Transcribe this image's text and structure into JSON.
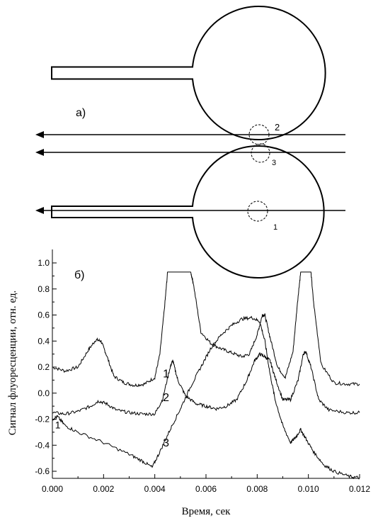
{
  "diagram": {
    "panel_label": "а)",
    "circle_labels": [
      "2",
      "3",
      "1"
    ]
  },
  "chart_data": {
    "type": "line",
    "panel_label": "б)",
    "title": "",
    "xlabel": "Время, сек",
    "ylabel": "Сигнал флуоресценции, отн. ед.",
    "xlim": [
      0,
      0.012
    ],
    "ylim": [
      -0.65,
      1.1
    ],
    "xticks": [
      "0.000",
      "0.002",
      "0.004",
      "0.006",
      "0.008",
      "0.010",
      "0.012"
    ],
    "yticks": [
      "1.0",
      "0.8",
      "0.6",
      "0.4",
      "0.2",
      "0.0",
      "-0.2",
      "-0.4",
      "-0.6"
    ],
    "grid": false,
    "series": [
      {
        "name": "1",
        "x": [
          0,
          0.0005,
          0.001,
          0.0014,
          0.0017,
          0.0019,
          0.0021,
          0.0024,
          0.0028,
          0.0032,
          0.0036,
          0.004,
          0.0042,
          0.0044,
          0.0045,
          0.0054,
          0.0055,
          0.0058,
          0.0062,
          0.0066,
          0.007,
          0.0074,
          0.0077,
          0.008,
          0.0082,
          0.0083,
          0.0085,
          0.0088,
          0.0091,
          0.0094,
          0.0096,
          0.0097,
          0.0101,
          0.0102,
          0.0105,
          0.011,
          0.0115,
          0.012
        ],
        "y": [
          0.2,
          0.17,
          0.2,
          0.33,
          0.41,
          0.4,
          0.3,
          0.13,
          0.08,
          0.06,
          0.07,
          0.12,
          0.3,
          0.7,
          0.93,
          0.93,
          0.85,
          0.47,
          0.38,
          0.34,
          0.31,
          0.28,
          0.3,
          0.45,
          0.6,
          0.6,
          0.43,
          0.2,
          0.12,
          0.32,
          0.75,
          0.93,
          0.93,
          0.7,
          0.22,
          0.08,
          0.07,
          0.07
        ]
      },
      {
        "name": "2",
        "x": [
          0,
          0.0005,
          0.001,
          0.0015,
          0.0018,
          0.0021,
          0.0025,
          0.003,
          0.0035,
          0.004,
          0.0043,
          0.0046,
          0.0047,
          0.0049,
          0.0052,
          0.0056,
          0.006,
          0.0064,
          0.0068,
          0.0072,
          0.0076,
          0.0079,
          0.0081,
          0.0083,
          0.0085,
          0.0087,
          0.009,
          0.0093,
          0.0096,
          0.0098,
          0.0099,
          0.0101,
          0.0104,
          0.0108,
          0.0115,
          0.012
        ],
        "y": [
          -0.15,
          -0.16,
          -0.14,
          -0.1,
          -0.06,
          -0.08,
          -0.13,
          -0.15,
          -0.16,
          -0.16,
          -0.05,
          0.2,
          0.25,
          0.1,
          -0.02,
          -0.08,
          -0.1,
          -0.12,
          -0.1,
          -0.05,
          0.1,
          0.25,
          0.3,
          0.28,
          0.25,
          0.12,
          -0.05,
          -0.05,
          0.1,
          0.3,
          0.32,
          0.2,
          -0.05,
          -0.13,
          -0.15,
          -0.15
        ]
      },
      {
        "name": "3",
        "x": [
          0,
          0.0002,
          0.0005,
          0.001,
          0.002,
          0.003,
          0.0035,
          0.0039,
          0.0042,
          0.0046,
          0.005,
          0.0054,
          0.0058,
          0.0062,
          0.0066,
          0.007,
          0.0074,
          0.0078,
          0.0081,
          0.0083,
          0.0085,
          0.0087,
          0.009,
          0.0093,
          0.0095,
          0.0097,
          0.0099,
          0.0102,
          0.0106,
          0.011,
          0.0116,
          0.012
        ],
        "y": [
          -0.2,
          -0.18,
          -0.25,
          -0.3,
          -0.38,
          -0.47,
          -0.52,
          -0.57,
          -0.45,
          -0.28,
          -0.12,
          0.05,
          0.2,
          0.35,
          0.45,
          0.52,
          0.57,
          0.58,
          0.55,
          0.4,
          0.15,
          -0.05,
          -0.25,
          -0.38,
          -0.34,
          -0.28,
          -0.35,
          -0.45,
          -0.55,
          -0.6,
          -0.64,
          -0.65
        ]
      }
    ],
    "curve_labels": [
      {
        "text": "1",
        "x": 0.001,
        "y": 0.12
      },
      {
        "text": "2",
        "x": 0.001,
        "y": -0.06
      },
      {
        "text": "3",
        "x": 0.001,
        "y": -0.41
      },
      {
        "text": "1",
        "x": 5e-05,
        "y": -0.27
      }
    ]
  }
}
